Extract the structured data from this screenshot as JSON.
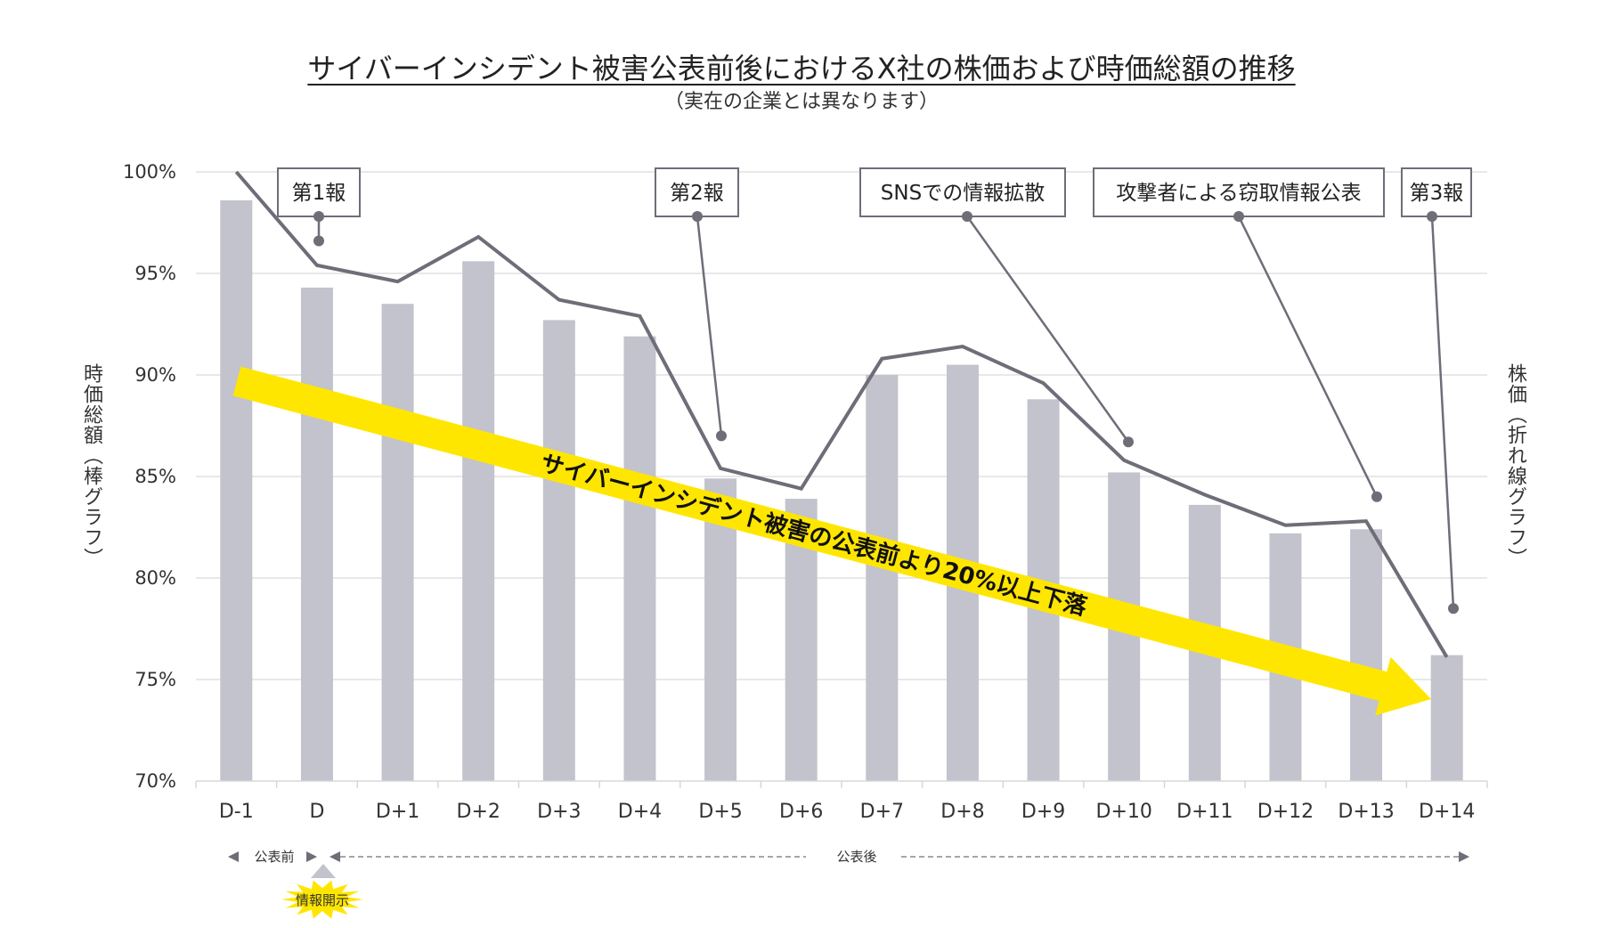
{
  "title": "サイバーインシデント被害公表前後におけるX社の株価および時価総額の推移",
  "subtitle": "（実在の企業とは異なります）",
  "left_axis_label": "時価総額（棒グラフ）",
  "right_axis_label": "株価（折れ線グラフ）",
  "colors": {
    "bar": "#c2c3cc",
    "line": "#6e6d78",
    "grid": "#e0e0e0",
    "arrow": "#ffe600",
    "starburst": "#ffe600"
  },
  "chart_data": {
    "type": "bar+line",
    "title": "サイバーインシデント被害公表前後におけるX社の株価および時価総額の推移",
    "ylabel_left": "時価総額（棒グラフ）",
    "ylabel_right": "株価（折れ線グラフ）",
    "ylim": [
      70,
      100
    ],
    "yticks": [
      "70%",
      "75%",
      "80%",
      "85%",
      "90%",
      "95%",
      "100%"
    ],
    "ytick_values": [
      70,
      75,
      80,
      85,
      90,
      95,
      100
    ],
    "grid": true,
    "categories": [
      "D-1",
      "D",
      "D+1",
      "D+2",
      "D+3",
      "D+4",
      "D+5",
      "D+6",
      "D+7",
      "D+8",
      "D+9",
      "D+10",
      "D+11",
      "D+12",
      "D+13",
      "D+14"
    ],
    "series": [
      {
        "name": "時価総額",
        "type": "bar",
        "values": [
          98.6,
          94.3,
          93.5,
          95.6,
          92.7,
          91.9,
          84.9,
          83.9,
          90.0,
          90.5,
          88.8,
          85.2,
          83.6,
          82.2,
          82.4,
          76.2
        ]
      },
      {
        "name": "株価",
        "type": "line",
        "values": [
          100.0,
          95.4,
          94.6,
          96.8,
          93.7,
          92.9,
          85.4,
          84.4,
          90.8,
          91.4,
          89.6,
          85.8,
          84.1,
          82.6,
          82.8,
          76.1
        ]
      }
    ],
    "annotations": [
      {
        "text": "第1報",
        "category": "D",
        "point_value": 96.6
      },
      {
        "text": "第2報",
        "category": "D+5",
        "point_value": 87.0
      },
      {
        "text": "SNSでの情報拡散",
        "category": "D+10",
        "point_value": 86.7
      },
      {
        "text": "攻撃者による窃取情報公表",
        "category": "D+13",
        "point_value": 84.0
      },
      {
        "text": "第3報",
        "category": "D+14",
        "point_value": 78.5
      }
    ],
    "trend_arrow_text": "サイバーインシデント被害の公表前より20%以上下落",
    "period_labels": {
      "before": "公表前",
      "after": "公表後"
    },
    "event_marker": "情報開示"
  }
}
